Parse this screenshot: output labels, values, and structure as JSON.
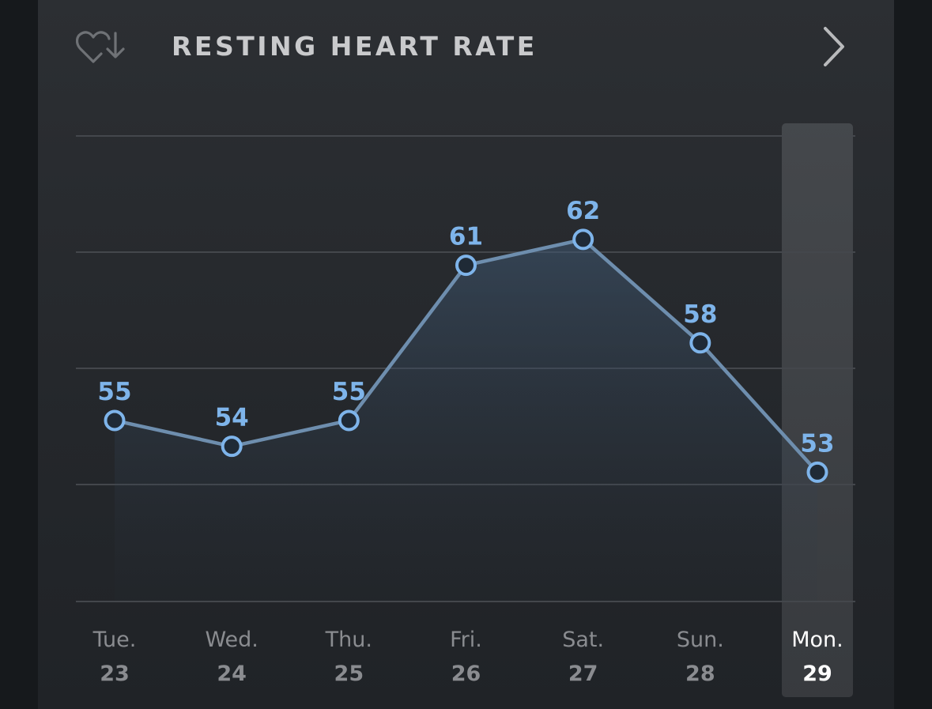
{
  "header": {
    "title": "RESTING HEART RATE",
    "icon": "heart-down-arrow-icon",
    "nav_icon": "chevron-right-icon"
  },
  "colors": {
    "accent": "#7eb4ea",
    "line": "#6e8eae",
    "grid": "#44474c",
    "highlight": "#3c3f43"
  },
  "chart_data": {
    "type": "line",
    "title": "RESTING HEART RATE",
    "categories": [
      "Tue.",
      "Wed.",
      "Thu.",
      "Fri.",
      "Sat.",
      "Sun.",
      "Mon."
    ],
    "dates": [
      "23",
      "24",
      "25",
      "26",
      "27",
      "28",
      "29"
    ],
    "series": [
      {
        "values": [
          55,
          54,
          55,
          61,
          62,
          58,
          53
        ]
      }
    ],
    "data_labels": [
      "55",
      "54",
      "55",
      "61",
      "62",
      "58",
      "53"
    ],
    "highlighted_index": 6,
    "ylim": [
      48,
      66
    ],
    "grid": true,
    "xlabel": "",
    "ylabel": ""
  }
}
